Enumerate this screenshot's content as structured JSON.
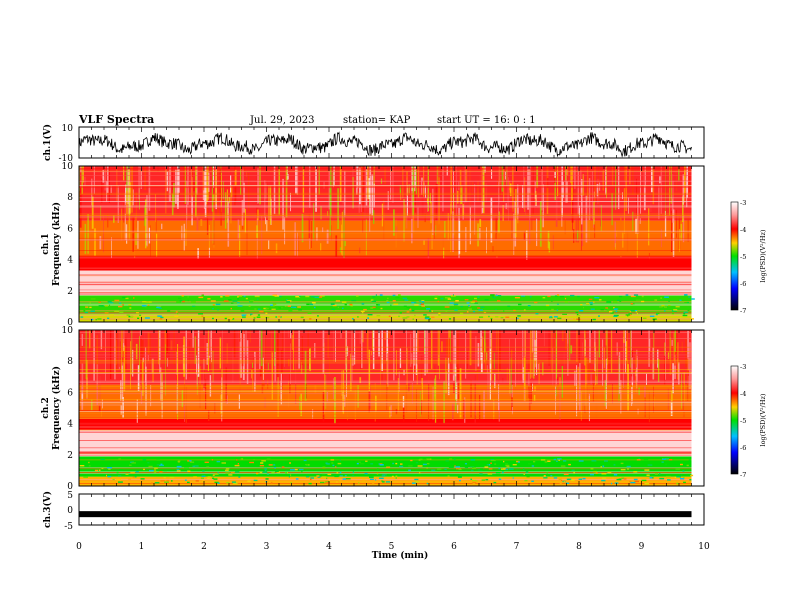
{
  "header": {
    "title": "VLF Spectra",
    "date": "Jul. 29, 2023",
    "station": "station= KAP",
    "start": "start UT = 16: 0 : 1"
  },
  "chart_data": [
    {
      "type": "line",
      "ylabel": "ch.1(V)",
      "ylim": [
        -10,
        10
      ],
      "y_ticks": [
        "10",
        "-10"
      ],
      "xlim": [
        0,
        10
      ],
      "series": [
        {
          "values_note": "oscillating noisy voltage trace",
          "x_range": [
            0,
            9.8
          ],
          "y_center": -1,
          "y_range": [
            -7,
            5
          ]
        }
      ]
    },
    {
      "type": "heatmap",
      "ylabel_top": "ch.1",
      "ylabel": "Frequency (kHz)",
      "ylim": [
        0,
        10
      ],
      "y_ticks": [
        "0",
        "2",
        "4",
        "6",
        "8",
        "10"
      ],
      "xlim": [
        0,
        10
      ],
      "data_x_range": [
        0,
        9.8
      ],
      "colorbar": {
        "label": "log(PSD)(V²/Hz)",
        "range": [
          -7,
          -3
        ],
        "ticks": [
          "-3",
          "-4",
          "-5",
          "-6",
          "-7"
        ]
      },
      "bands": [
        {
          "from_khz": 0.0,
          "to_khz": 0.5,
          "level": -4.6
        },
        {
          "from_khz": 0.5,
          "to_khz": 1.7,
          "level": -5.0
        },
        {
          "from_khz": 1.7,
          "to_khz": 3.3,
          "level": -3.2
        },
        {
          "from_khz": 3.3,
          "to_khz": 4.2,
          "level": -3.9
        },
        {
          "from_khz": 4.2,
          "to_khz": 6.5,
          "level": -4.2
        },
        {
          "from_khz": 6.5,
          "to_khz": 10.0,
          "level": -3.8
        }
      ]
    },
    {
      "type": "heatmap",
      "ylabel_top": "ch.2",
      "ylabel": "Frequency (kHz)",
      "ylim": [
        0,
        10
      ],
      "y_ticks": [
        "0",
        "2",
        "4",
        "6",
        "8",
        "10"
      ],
      "xlim": [
        0,
        10
      ],
      "data_x_range": [
        0,
        9.8
      ],
      "colorbar": {
        "label": "log(PSD)(V²/Hz)",
        "range": [
          -7,
          -3
        ],
        "ticks": [
          "-3",
          "-4",
          "-5",
          "-6",
          "-7"
        ]
      },
      "bands": [
        {
          "from_khz": 0.0,
          "to_khz": 0.6,
          "level": -4.4
        },
        {
          "from_khz": 0.6,
          "to_khz": 1.9,
          "level": -5.1
        },
        {
          "from_khz": 1.9,
          "to_khz": 3.6,
          "level": -3.2
        },
        {
          "from_khz": 3.6,
          "to_khz": 4.3,
          "level": -3.9
        },
        {
          "from_khz": 4.3,
          "to_khz": 6.5,
          "level": -4.2
        },
        {
          "from_khz": 6.5,
          "to_khz": 10.0,
          "level": -3.8
        }
      ]
    },
    {
      "type": "line",
      "ylabel": "ch.3(V)",
      "ylim": [
        -5,
        5
      ],
      "y_ticks": [
        "5",
        "0",
        "-5"
      ],
      "xlim": [
        0,
        10
      ],
      "series": [
        {
          "values_note": "flat trace near constant level",
          "x_range": [
            0,
            9.8
          ],
          "y_level": -1.5
        }
      ]
    }
  ],
  "xaxis": {
    "label": "Time (min)",
    "range": [
      0,
      10
    ],
    "ticks": [
      "0",
      "1",
      "2",
      "3",
      "4",
      "5",
      "6",
      "7",
      "8",
      "9",
      "10"
    ]
  }
}
